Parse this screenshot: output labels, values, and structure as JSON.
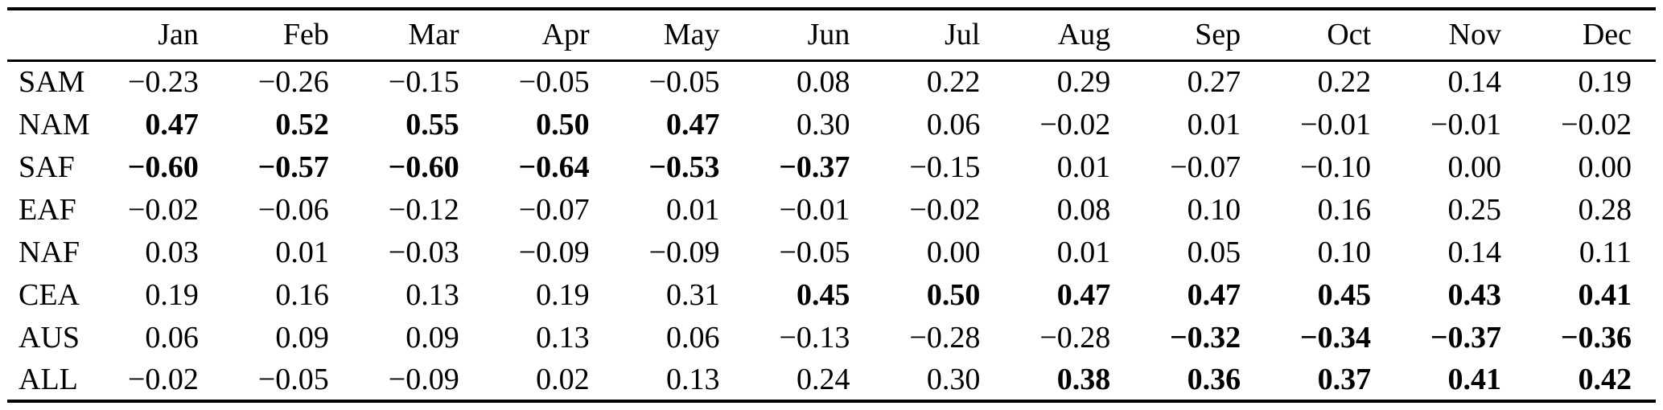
{
  "table": {
    "corner_label": "",
    "columns": [
      "Jan",
      "Feb",
      "Mar",
      "Apr",
      "May",
      "Jun",
      "Jul",
      "Aug",
      "Sep",
      "Oct",
      "Nov",
      "Dec"
    ],
    "rows": [
      {
        "label": "SAM",
        "values": [
          "−0.23",
          "−0.26",
          "−0.15",
          "−0.05",
          "−0.05",
          "0.08",
          "0.22",
          "0.29",
          "0.27",
          "0.22",
          "0.14",
          "0.19"
        ],
        "bold": [
          false,
          false,
          false,
          false,
          false,
          false,
          false,
          false,
          false,
          false,
          false,
          false
        ]
      },
      {
        "label": "NAM",
        "values": [
          "0.47",
          "0.52",
          "0.55",
          "0.50",
          "0.47",
          "0.30",
          "0.06",
          "−0.02",
          "0.01",
          "−0.01",
          "−0.01",
          "−0.02"
        ],
        "bold": [
          true,
          true,
          true,
          true,
          true,
          false,
          false,
          false,
          false,
          false,
          false,
          false
        ]
      },
      {
        "label": "SAF",
        "values": [
          "−0.60",
          "−0.57",
          "−0.60",
          "−0.64",
          "−0.53",
          "−0.37",
          "−0.15",
          "0.01",
          "−0.07",
          "−0.10",
          "0.00",
          "0.00"
        ],
        "bold": [
          true,
          true,
          true,
          true,
          true,
          true,
          false,
          false,
          false,
          false,
          false,
          false
        ]
      },
      {
        "label": "EAF",
        "values": [
          "−0.02",
          "−0.06",
          "−0.12",
          "−0.07",
          "0.01",
          "−0.01",
          "−0.02",
          "0.08",
          "0.10",
          "0.16",
          "0.25",
          "0.28"
        ],
        "bold": [
          false,
          false,
          false,
          false,
          false,
          false,
          false,
          false,
          false,
          false,
          false,
          false
        ]
      },
      {
        "label": "NAF",
        "values": [
          "0.03",
          "0.01",
          "−0.03",
          "−0.09",
          "−0.09",
          "−0.05",
          "0.00",
          "0.01",
          "0.05",
          "0.10",
          "0.14",
          "0.11"
        ],
        "bold": [
          false,
          false,
          false,
          false,
          false,
          false,
          false,
          false,
          false,
          false,
          false,
          false
        ]
      },
      {
        "label": "CEA",
        "values": [
          "0.19",
          "0.16",
          "0.13",
          "0.19",
          "0.31",
          "0.45",
          "0.50",
          "0.47",
          "0.47",
          "0.45",
          "0.43",
          "0.41"
        ],
        "bold": [
          false,
          false,
          false,
          false,
          false,
          true,
          true,
          true,
          true,
          true,
          true,
          true
        ]
      },
      {
        "label": "AUS",
        "values": [
          "0.06",
          "0.09",
          "0.09",
          "0.13",
          "0.06",
          "−0.13",
          "−0.28",
          "−0.28",
          "−0.32",
          "−0.34",
          "−0.37",
          "−0.36"
        ],
        "bold": [
          false,
          false,
          false,
          false,
          false,
          false,
          false,
          false,
          true,
          true,
          true,
          true
        ]
      },
      {
        "label": "ALL",
        "values": [
          "−0.02",
          "−0.05",
          "−0.09",
          "0.02",
          "0.13",
          "0.24",
          "0.30",
          "0.38",
          "0.36",
          "0.37",
          "0.41",
          "0.42"
        ],
        "bold": [
          false,
          false,
          false,
          false,
          false,
          false,
          false,
          true,
          true,
          true,
          true,
          true
        ]
      }
    ]
  }
}
